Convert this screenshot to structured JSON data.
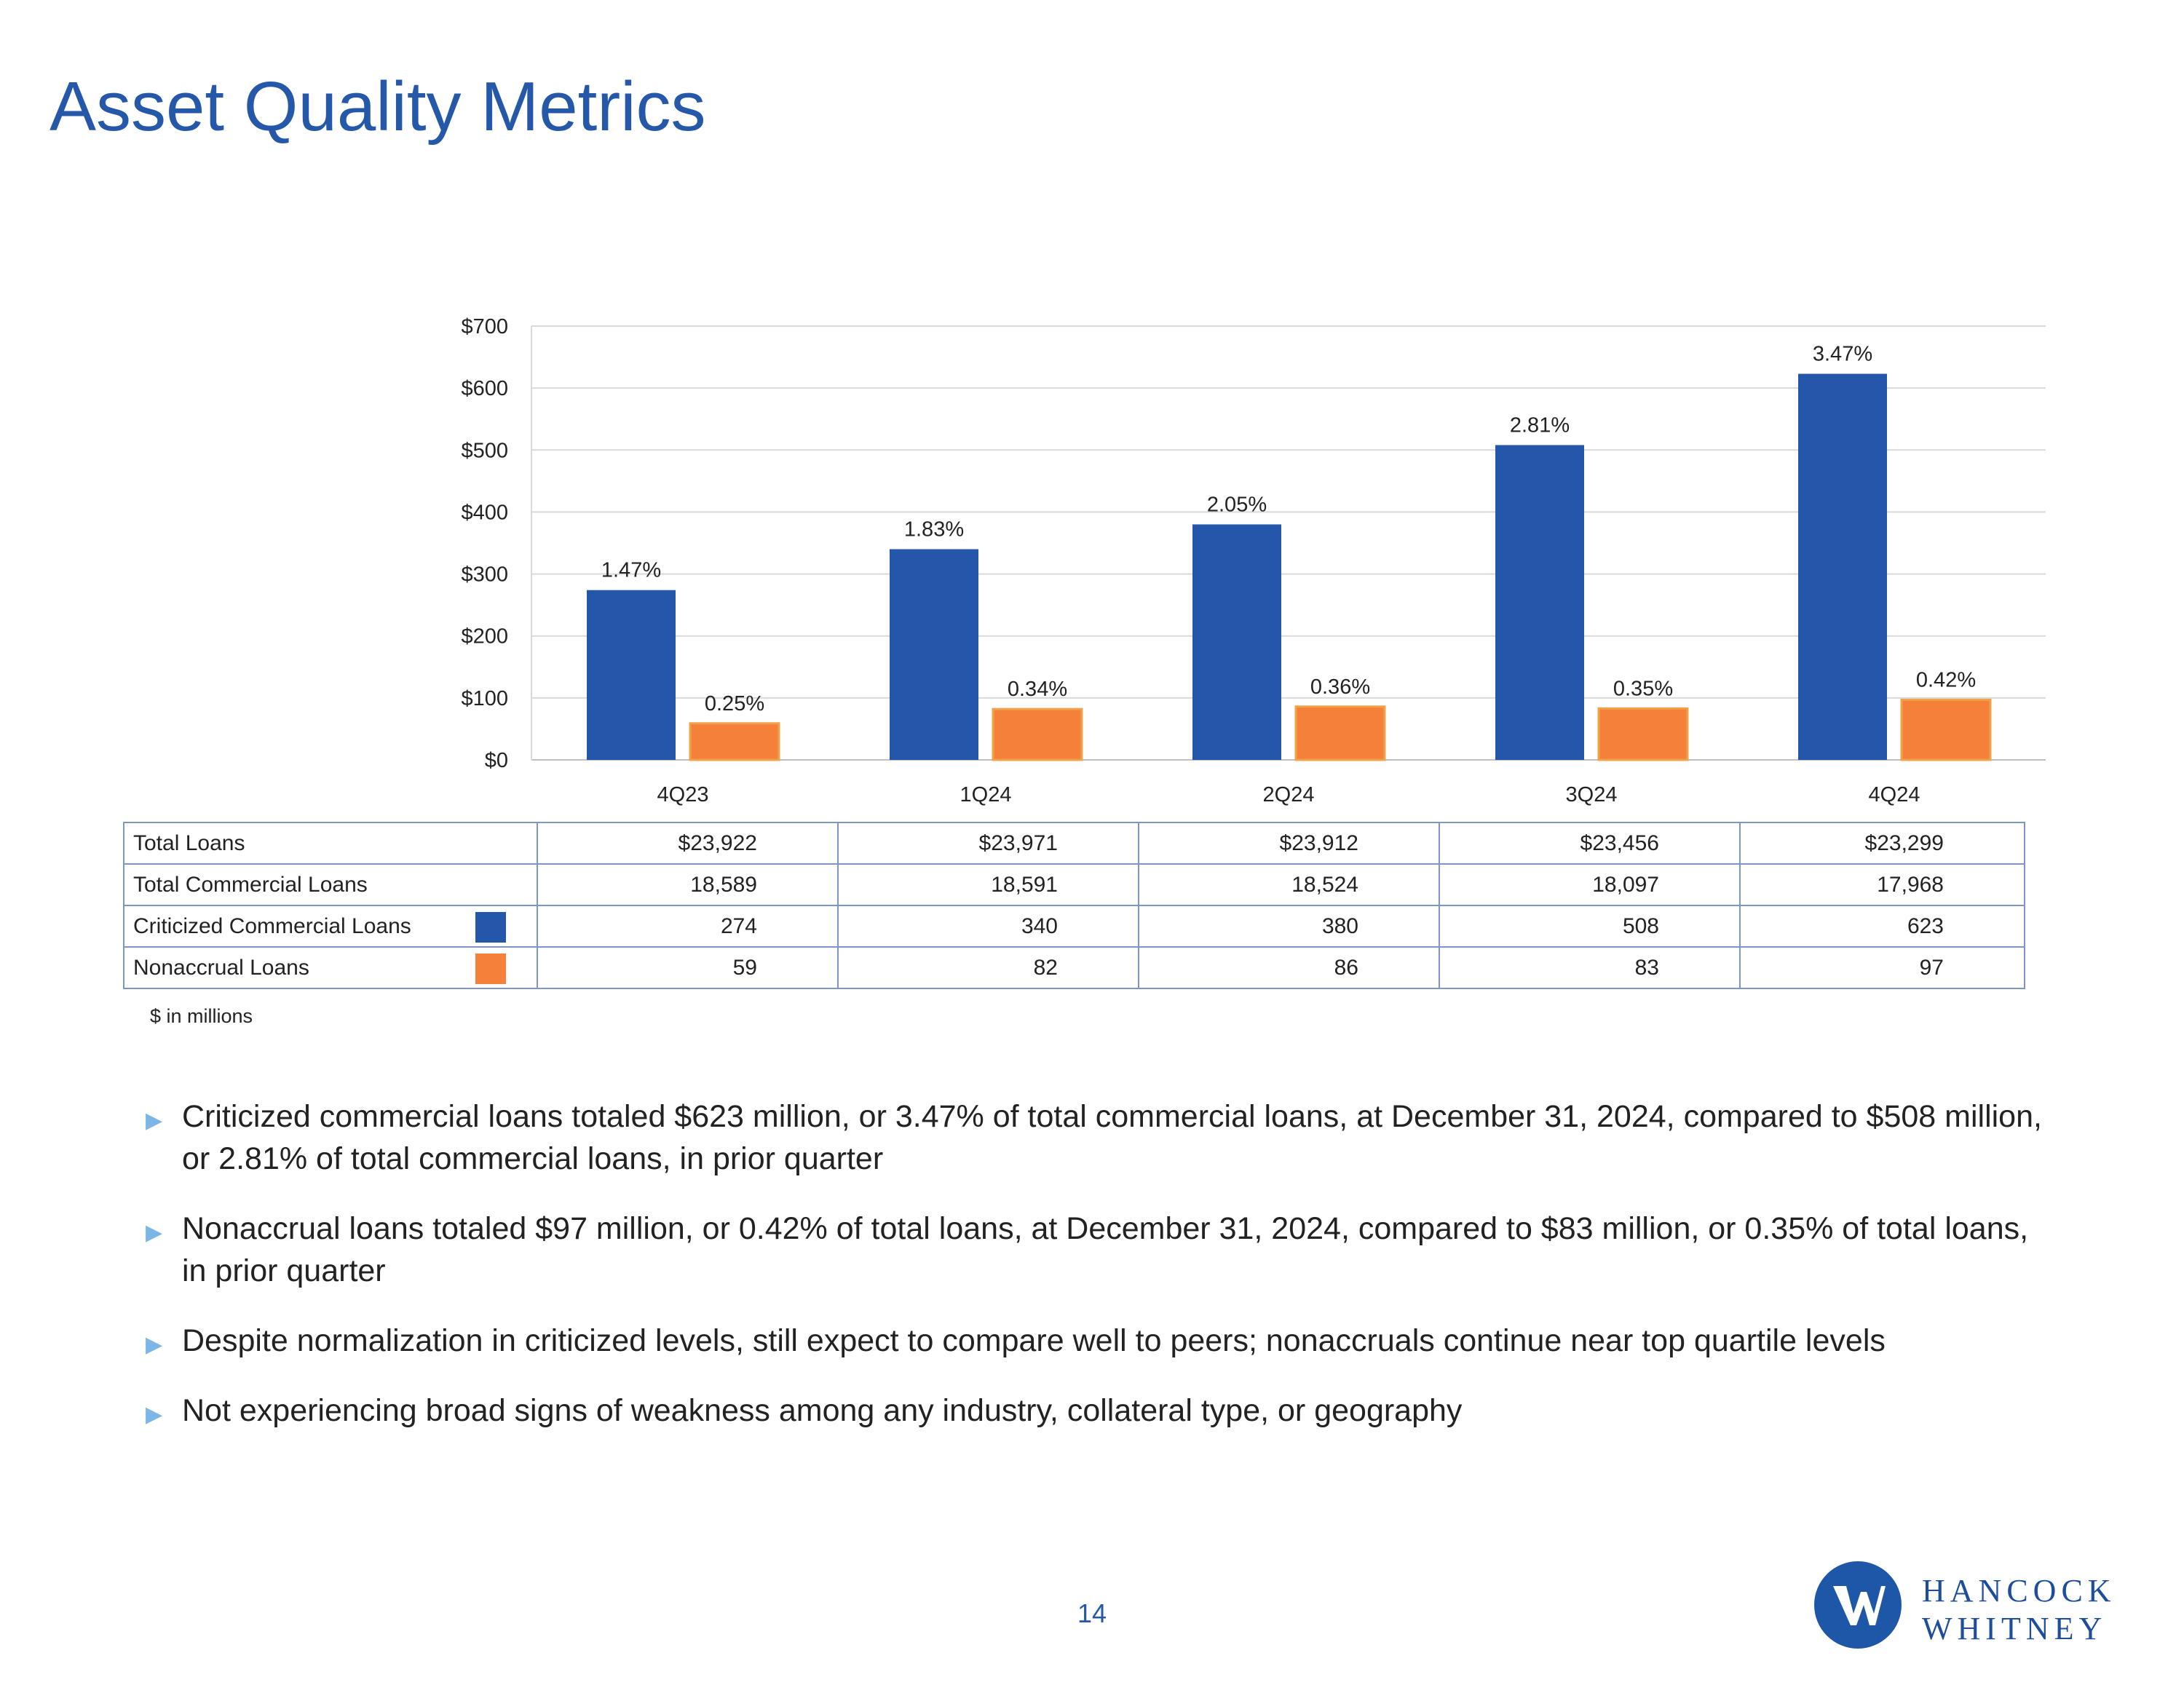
{
  "page": {
    "title": "Asset Quality Metrics",
    "page_number": "14"
  },
  "chart_data": {
    "type": "bar",
    "categories": [
      "4Q23",
      "1Q24",
      "2Q24",
      "3Q24",
      "4Q24"
    ],
    "y_ticks": [
      "$0",
      "$100",
      "$200",
      "$300",
      "$400",
      "$500",
      "$600",
      "$700"
    ],
    "ylim": [
      0,
      700
    ],
    "series": [
      {
        "name": "Criticized Commercial Loans",
        "color": "#2457aa",
        "values": [
          274,
          340,
          380,
          508,
          623
        ],
        "labels": [
          "1.47%",
          "1.83%",
          "2.05%",
          "2.81%",
          "3.47%"
        ]
      },
      {
        "name": "Nonaccrual Loans",
        "color": "#f4803a",
        "values": [
          59,
          82,
          86,
          83,
          97
        ],
        "labels": [
          "0.25%",
          "0.34%",
          "0.36%",
          "0.35%",
          "0.42%"
        ]
      }
    ]
  },
  "table": {
    "rows": [
      {
        "label": "Total Loans",
        "values": [
          "$23,922",
          "$23,971",
          "$23,912",
          "$23,456",
          "$23,299"
        ]
      },
      {
        "label": "Total Commercial Loans",
        "values": [
          "18,589",
          "18,591",
          "18,524",
          "18,097",
          "17,968"
        ]
      },
      {
        "label": "Criticized Commercial Loans",
        "values": [
          "274",
          "340",
          "380",
          "508",
          "623"
        ]
      },
      {
        "label": "Nonaccrual Loans",
        "values": [
          "59",
          "82",
          "86",
          "83",
          "97"
        ]
      }
    ],
    "note": "$ in millions"
  },
  "bullets": [
    "Criticized commercial loans totaled $623 million, or 3.47% of total commercial loans, at December 31, 2024, compared to $508 million, or 2.81% of total commercial loans, in prior quarter",
    "Nonaccrual loans totaled $97 million, or 0.42% of total loans, at December 31, 2024, compared to $83 million, or 0.35% of total loans, in prior quarter",
    "Despite normalization in criticized levels, still expect to compare well to peers; nonaccruals continue near top quartile levels",
    "Not experiencing broad signs of weakness among any industry, collateral type, or geography"
  ],
  "logo": {
    "line1": "HANCOCK",
    "line2": "WHITNEY"
  }
}
